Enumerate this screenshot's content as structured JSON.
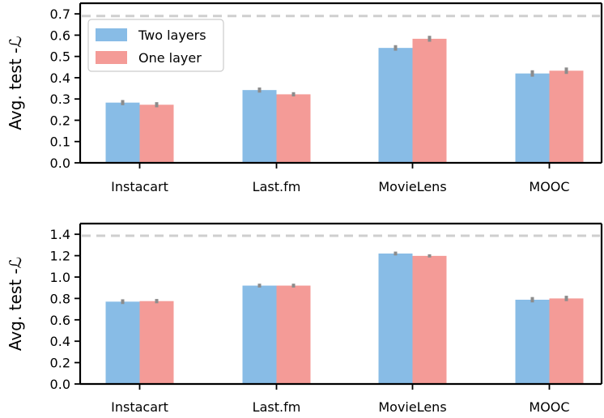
{
  "chart_data": [
    {
      "type": "bar",
      "categories": [
        "Instacart",
        "Last.fm",
        "MovieLens",
        "MOOC"
      ],
      "ylabel": "Avg. test -ℒ",
      "xlabel": "",
      "ylim": [
        0,
        0.75
      ],
      "yticks": [
        0.0,
        0.1,
        0.2,
        0.3,
        0.4,
        0.5,
        0.6,
        0.7
      ],
      "ytick_labels": [
        "0.0",
        "0.1",
        "0.2",
        "0.3",
        "0.4",
        "0.5",
        "0.6",
        "0.7"
      ],
      "reference_line": 0.69,
      "legend": {
        "position": "upper-left"
      },
      "series": [
        {
          "name": "Two layers",
          "color": "#88bce6",
          "values": [
            0.283,
            0.342,
            0.54,
            0.42
          ],
          "errors": [
            0.012,
            0.012,
            0.013,
            0.015
          ]
        },
        {
          "name": "One layer",
          "color": "#f49b97",
          "values": [
            0.273,
            0.322,
            0.583,
            0.433
          ],
          "errors": [
            0.012,
            0.01,
            0.014,
            0.015
          ]
        }
      ]
    },
    {
      "type": "bar",
      "categories": [
        "Instacart",
        "Last.fm",
        "MovieLens",
        "MOOC"
      ],
      "ylabel": "Avg. test -ℒ",
      "xlabel": "",
      "ylim": [
        0,
        1.5
      ],
      "yticks": [
        0.0,
        0.2,
        0.4,
        0.6,
        0.8,
        1.0,
        1.2,
        1.4
      ],
      "ytick_labels": [
        "0.0",
        "0.2",
        "0.4",
        "0.6",
        "0.8",
        "1.0",
        "1.2",
        "1.4"
      ],
      "reference_line": 1.386,
      "series": [
        {
          "name": "Two layers",
          "color": "#88bce6",
          "values": [
            0.77,
            0.92,
            1.22,
            0.788
          ],
          "errors": [
            0.022,
            0.018,
            0.018,
            0.025
          ]
        },
        {
          "name": "One layer",
          "color": "#f49b97",
          "values": [
            0.775,
            0.92,
            1.198,
            0.8
          ],
          "errors": [
            0.02,
            0.018,
            0.015,
            0.025
          ]
        }
      ]
    }
  ]
}
